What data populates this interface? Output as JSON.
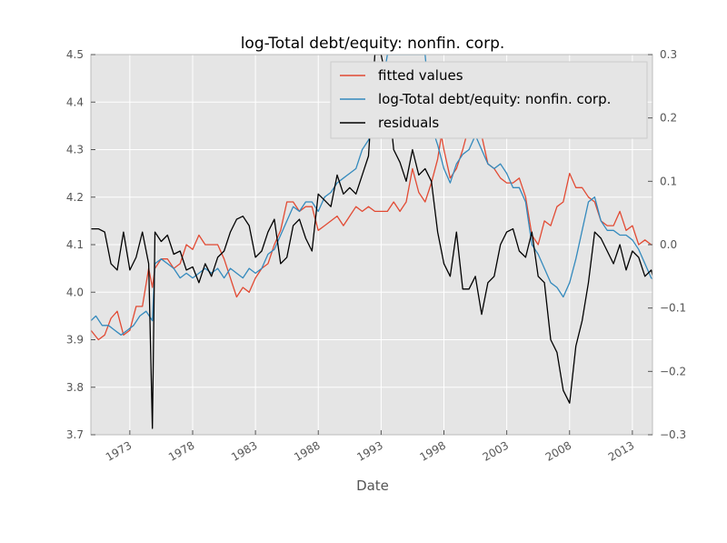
{
  "chart_data": {
    "type": "line",
    "title": "log-Total debt/equity: nonfin. corp.",
    "xlabel": "Date",
    "ylabel": "",
    "ylabel_right": "",
    "xlim": [
      1969.9,
      2014.6
    ],
    "ylim": [
      3.7,
      4.5
    ],
    "ylim_right": [
      -0.3,
      0.3
    ],
    "x_ticks": [
      1973,
      1978,
      1983,
      1988,
      1993,
      1998,
      2003,
      2008,
      2013
    ],
    "x_tick_labels": [
      "1973",
      "1978",
      "1983",
      "1988",
      "1993",
      "1998",
      "2003",
      "2008",
      "2013"
    ],
    "y_ticks": [
      3.7,
      3.8,
      3.9,
      4.0,
      4.1,
      4.2,
      4.3,
      4.4,
      4.5
    ],
    "y_tick_labels": [
      "3.7",
      "3.8",
      "3.9",
      "4.0",
      "4.1",
      "4.2",
      "4.3",
      "4.4",
      "4.5"
    ],
    "y_right_ticks": [
      -0.3,
      -0.2,
      -0.1,
      0.0,
      0.1,
      0.2,
      0.3
    ],
    "y_right_tick_labels": [
      "−0.3",
      "−0.2",
      "−0.1",
      "0.0",
      "0.1",
      "0.2",
      "0.3"
    ],
    "grid": true,
    "legend_position": "top-right",
    "background": "#e5e5e5",
    "series": [
      {
        "name": "fitted values",
        "axis": "left",
        "color": "#e24a33",
        "points": [
          [
            1969.9,
            3.92
          ],
          [
            1970.5,
            3.9
          ],
          [
            1971.0,
            3.91
          ],
          [
            1971.5,
            3.945
          ],
          [
            1972.0,
            3.96
          ],
          [
            1972.5,
            3.91
          ],
          [
            1973.0,
            3.92
          ],
          [
            1973.5,
            3.97
          ],
          [
            1974.0,
            3.97
          ],
          [
            1974.5,
            4.05
          ],
          [
            1974.8,
            4.01
          ],
          [
            1975.0,
            4.05
          ],
          [
            1975.5,
            4.07
          ],
          [
            1976.0,
            4.07
          ],
          [
            1976.5,
            4.05
          ],
          [
            1977.0,
            4.06
          ],
          [
            1977.5,
            4.1
          ],
          [
            1978.0,
            4.09
          ],
          [
            1978.5,
            4.12
          ],
          [
            1979.0,
            4.1
          ],
          [
            1979.5,
            4.1
          ],
          [
            1980.0,
            4.1
          ],
          [
            1980.5,
            4.07
          ],
          [
            1981.0,
            4.03
          ],
          [
            1981.5,
            3.99
          ],
          [
            1982.0,
            4.01
          ],
          [
            1982.5,
            4.0
          ],
          [
            1983.0,
            4.03
          ],
          [
            1983.5,
            4.05
          ],
          [
            1984.0,
            4.06
          ],
          [
            1984.5,
            4.1
          ],
          [
            1985.0,
            4.13
          ],
          [
            1985.5,
            4.19
          ],
          [
            1986.0,
            4.19
          ],
          [
            1986.5,
            4.17
          ],
          [
            1987.0,
            4.18
          ],
          [
            1987.5,
            4.18
          ],
          [
            1988.0,
            4.13
          ],
          [
            1988.5,
            4.14
          ],
          [
            1989.0,
            4.15
          ],
          [
            1989.5,
            4.16
          ],
          [
            1990.0,
            4.14
          ],
          [
            1990.5,
            4.16
          ],
          [
            1991.0,
            4.18
          ],
          [
            1991.5,
            4.17
          ],
          [
            1992.0,
            4.18
          ],
          [
            1992.5,
            4.17
          ],
          [
            1993.0,
            4.17
          ],
          [
            1993.5,
            4.17
          ],
          [
            1994.0,
            4.19
          ],
          [
            1994.5,
            4.17
          ],
          [
            1995.0,
            4.19
          ],
          [
            1995.5,
            4.26
          ],
          [
            1996.0,
            4.21
          ],
          [
            1996.5,
            4.19
          ],
          [
            1997.0,
            4.23
          ],
          [
            1997.5,
            4.28
          ],
          [
            1997.8,
            4.33
          ],
          [
            1998.0,
            4.3
          ],
          [
            1998.5,
            4.24
          ],
          [
            1999.0,
            4.26
          ],
          [
            1999.5,
            4.3
          ],
          [
            1999.8,
            4.33
          ],
          [
            2001.0,
            4.33
          ],
          [
            2001.5,
            4.27
          ],
          [
            2002.0,
            4.26
          ],
          [
            2002.5,
            4.24
          ],
          [
            2003.0,
            4.23
          ],
          [
            2003.5,
            4.23
          ],
          [
            2004.0,
            4.24
          ],
          [
            2004.5,
            4.2
          ],
          [
            2005.0,
            4.12
          ],
          [
            2005.5,
            4.1
          ],
          [
            2006.0,
            4.15
          ],
          [
            2006.5,
            4.14
          ],
          [
            2007.0,
            4.18
          ],
          [
            2007.5,
            4.19
          ],
          [
            2008.0,
            4.25
          ],
          [
            2008.5,
            4.22
          ],
          [
            2009.0,
            4.22
          ],
          [
            2009.5,
            4.2
          ],
          [
            2010.0,
            4.19
          ],
          [
            2010.5,
            4.15
          ],
          [
            2011.0,
            4.14
          ],
          [
            2011.5,
            4.14
          ],
          [
            2012.0,
            4.17
          ],
          [
            2012.5,
            4.13
          ],
          [
            2013.0,
            4.14
          ],
          [
            2013.5,
            4.1
          ],
          [
            2014.0,
            4.11
          ],
          [
            2014.5,
            4.1
          ],
          [
            2015.0,
            4.1
          ],
          [
            2015.3,
            4.07
          ],
          [
            2015.6,
            4.08
          ]
        ]
      },
      {
        "name": "log-Total debt/equity: nonfin. corp.",
        "axis": "left",
        "color": "#348abd",
        "points": [
          [
            1969.9,
            3.94
          ],
          [
            1970.3,
            3.95
          ],
          [
            1970.8,
            3.93
          ],
          [
            1971.3,
            3.93
          ],
          [
            1971.8,
            3.92
          ],
          [
            1972.3,
            3.91
          ],
          [
            1972.8,
            3.92
          ],
          [
            1973.3,
            3.93
          ],
          [
            1973.8,
            3.95
          ],
          [
            1974.3,
            3.96
          ],
          [
            1974.8,
            3.94
          ],
          [
            1975.0,
            4.06
          ],
          [
            1975.5,
            4.07
          ],
          [
            1976.0,
            4.06
          ],
          [
            1976.5,
            4.05
          ],
          [
            1977.0,
            4.03
          ],
          [
            1977.5,
            4.04
          ],
          [
            1978.0,
            4.03
          ],
          [
            1978.5,
            4.04
          ],
          [
            1979.0,
            4.05
          ],
          [
            1979.5,
            4.04
          ],
          [
            1980.0,
            4.05
          ],
          [
            1980.5,
            4.03
          ],
          [
            1981.0,
            4.05
          ],
          [
            1981.5,
            4.04
          ],
          [
            1982.0,
            4.03
          ],
          [
            1982.5,
            4.05
          ],
          [
            1983.0,
            4.04
          ],
          [
            1983.5,
            4.05
          ],
          [
            1984.0,
            4.08
          ],
          [
            1984.5,
            4.09
          ],
          [
            1985.0,
            4.12
          ],
          [
            1985.5,
            4.15
          ],
          [
            1986.0,
            4.18
          ],
          [
            1986.5,
            4.17
          ],
          [
            1987.0,
            4.19
          ],
          [
            1987.5,
            4.19
          ],
          [
            1988.0,
            4.17
          ],
          [
            1988.5,
            4.2
          ],
          [
            1989.0,
            4.21
          ],
          [
            1989.5,
            4.23
          ],
          [
            1990.0,
            4.24
          ],
          [
            1990.5,
            4.25
          ],
          [
            1991.0,
            4.26
          ],
          [
            1991.5,
            4.3
          ],
          [
            1992.0,
            4.32
          ],
          [
            1992.5,
            4.38
          ],
          [
            1993.0,
            4.42
          ],
          [
            1993.5,
            4.5
          ],
          [
            1996.5,
            4.5
          ],
          [
            1997.0,
            4.35
          ],
          [
            1997.5,
            4.31
          ],
          [
            1998.0,
            4.26
          ],
          [
            1998.5,
            4.23
          ],
          [
            1999.0,
            4.27
          ],
          [
            1999.5,
            4.29
          ],
          [
            2000.0,
            4.3
          ],
          [
            2000.5,
            4.33
          ],
          [
            2001.0,
            4.3
          ],
          [
            2001.5,
            4.27
          ],
          [
            2002.0,
            4.26
          ],
          [
            2002.5,
            4.27
          ],
          [
            2003.0,
            4.25
          ],
          [
            2003.5,
            4.22
          ],
          [
            2004.0,
            4.22
          ],
          [
            2004.5,
            4.19
          ],
          [
            2005.0,
            4.1
          ],
          [
            2005.5,
            4.08
          ],
          [
            2006.0,
            4.05
          ],
          [
            2006.5,
            4.02
          ],
          [
            2007.0,
            4.01
          ],
          [
            2007.5,
            3.99
          ],
          [
            2008.0,
            4.02
          ],
          [
            2008.5,
            4.07
          ],
          [
            2009.0,
            4.13
          ],
          [
            2009.5,
            4.19
          ],
          [
            2010.0,
            4.2
          ],
          [
            2010.5,
            4.15
          ],
          [
            2011.0,
            4.13
          ],
          [
            2011.5,
            4.13
          ],
          [
            2012.0,
            4.12
          ],
          [
            2012.5,
            4.12
          ],
          [
            2013.0,
            4.11
          ],
          [
            2013.5,
            4.09
          ],
          [
            2014.0,
            4.06
          ],
          [
            2014.5,
            4.03
          ],
          [
            2015.0,
            4.02
          ],
          [
            2015.3,
            4.01
          ],
          [
            2015.6,
            3.99
          ]
        ]
      },
      {
        "name": "residuals",
        "axis": "right",
        "color": "#000000",
        "points": [
          [
            1969.9,
            0.025
          ],
          [
            1970.5,
            0.025
          ],
          [
            1971.0,
            0.02
          ],
          [
            1971.5,
            -0.03
          ],
          [
            1972.0,
            -0.04
          ],
          [
            1972.5,
            0.02
          ],
          [
            1973.0,
            -0.04
          ],
          [
            1973.5,
            -0.02
          ],
          [
            1974.0,
            0.02
          ],
          [
            1974.5,
            -0.03
          ],
          [
            1974.8,
            -0.29
          ],
          [
            1975.0,
            0.02
          ],
          [
            1975.5,
            0.005
          ],
          [
            1976.0,
            0.015
          ],
          [
            1976.5,
            -0.015
          ],
          [
            1977.0,
            -0.01
          ],
          [
            1977.5,
            -0.04
          ],
          [
            1978.0,
            -0.035
          ],
          [
            1978.5,
            -0.06
          ],
          [
            1979.0,
            -0.03
          ],
          [
            1979.5,
            -0.05
          ],
          [
            1980.0,
            -0.02
          ],
          [
            1980.5,
            -0.01
          ],
          [
            1981.0,
            0.02
          ],
          [
            1981.5,
            0.04
          ],
          [
            1982.0,
            0.045
          ],
          [
            1982.5,
            0.03
          ],
          [
            1983.0,
            -0.02
          ],
          [
            1983.5,
            -0.01
          ],
          [
            1984.0,
            0.02
          ],
          [
            1984.5,
            0.04
          ],
          [
            1985.0,
            -0.03
          ],
          [
            1985.5,
            -0.02
          ],
          [
            1986.0,
            0.03
          ],
          [
            1986.5,
            0.04
          ],
          [
            1987.0,
            0.01
          ],
          [
            1987.5,
            -0.01
          ],
          [
            1988.0,
            0.08
          ],
          [
            1988.5,
            0.07
          ],
          [
            1989.0,
            0.06
          ],
          [
            1989.5,
            0.11
          ],
          [
            1990.0,
            0.08
          ],
          [
            1990.5,
            0.09
          ],
          [
            1991.0,
            0.08
          ],
          [
            1991.5,
            0.11
          ],
          [
            1992.0,
            0.14
          ],
          [
            1992.5,
            0.3
          ],
          [
            1993.0,
            0.3
          ],
          [
            1993.5,
            0.25
          ],
          [
            1994.0,
            0.15
          ],
          [
            1994.5,
            0.13
          ],
          [
            1995.0,
            0.1
          ],
          [
            1995.5,
            0.15
          ],
          [
            1996.0,
            0.11
          ],
          [
            1996.5,
            0.12
          ],
          [
            1997.0,
            0.1
          ],
          [
            1997.5,
            0.02
          ],
          [
            1998.0,
            -0.03
          ],
          [
            1998.5,
            -0.05
          ],
          [
            1999.0,
            0.02
          ],
          [
            1999.5,
            -0.07
          ],
          [
            2000.0,
            -0.07
          ],
          [
            2000.5,
            -0.05
          ],
          [
            2001.0,
            -0.11
          ],
          [
            2001.5,
            -0.06
          ],
          [
            2002.0,
            -0.05
          ],
          [
            2002.5,
            0.0
          ],
          [
            2003.0,
            0.02
          ],
          [
            2003.5,
            0.025
          ],
          [
            2004.0,
            -0.01
          ],
          [
            2004.5,
            -0.02
          ],
          [
            2005.0,
            0.02
          ],
          [
            2005.5,
            -0.05
          ],
          [
            2006.0,
            -0.06
          ],
          [
            2006.5,
            -0.15
          ],
          [
            2007.0,
            -0.17
          ],
          [
            2007.5,
            -0.23
          ],
          [
            2008.0,
            -0.25
          ],
          [
            2008.5,
            -0.16
          ],
          [
            2009.0,
            -0.12
          ],
          [
            2009.5,
            -0.06
          ],
          [
            2010.0,
            0.02
          ],
          [
            2010.5,
            0.01
          ],
          [
            2011.0,
            -0.01
          ],
          [
            2011.5,
            -0.03
          ],
          [
            2012.0,
            0.0
          ],
          [
            2012.5,
            -0.04
          ],
          [
            2013.0,
            -0.01
          ],
          [
            2013.5,
            -0.02
          ],
          [
            2014.0,
            -0.05
          ],
          [
            2014.5,
            -0.04
          ],
          [
            2015.0,
            -0.08
          ],
          [
            2015.3,
            -0.07
          ],
          [
            2015.6,
            -0.1
          ]
        ]
      }
    ]
  }
}
